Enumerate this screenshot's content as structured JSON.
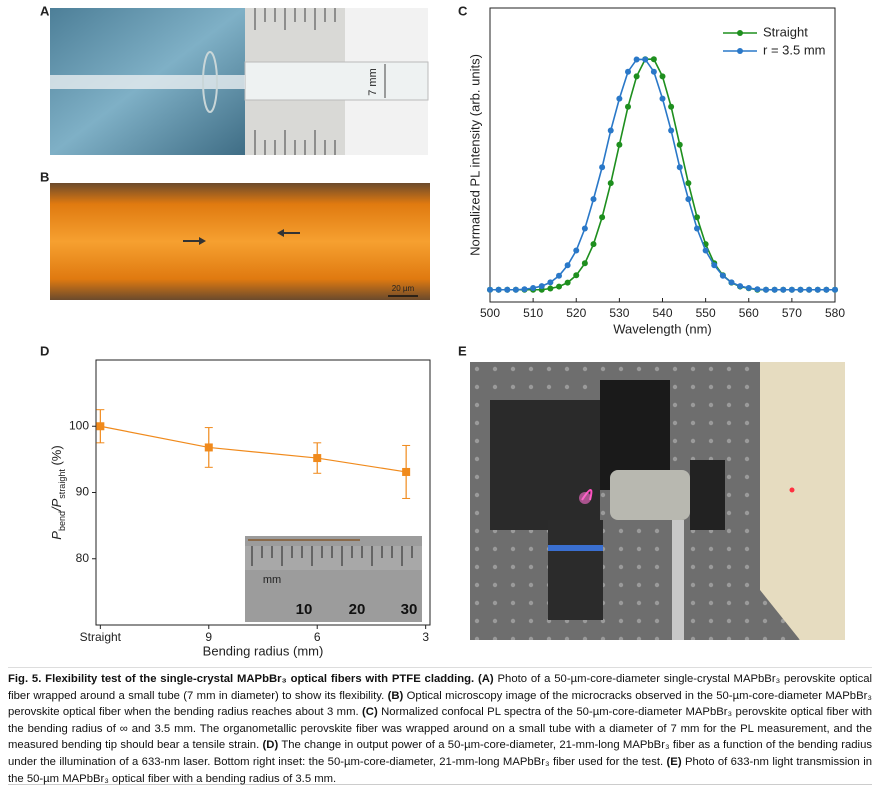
{
  "panel_labels": [
    "A",
    "B",
    "C",
    "D",
    "E"
  ],
  "photo_texts": {
    "a_scale": "7 mm",
    "b_scale": "20 µm",
    "d_inset": [
      "mm",
      "10",
      "20",
      "30"
    ]
  },
  "chart_data": [
    {
      "type": "line",
      "xlabel": "Wavelength (nm)",
      "ylabel": "Normalized PL intensity (arb. units)",
      "x": [
        500,
        502,
        504,
        506,
        508,
        510,
        512,
        514,
        516,
        518,
        520,
        522,
        524,
        526,
        528,
        530,
        532,
        534,
        536,
        538,
        540,
        542,
        544,
        546,
        548,
        550,
        552,
        554,
        556,
        558,
        560,
        562,
        564,
        566,
        568,
        570,
        572,
        574,
        576,
        578,
        580
      ],
      "xlim": [
        500,
        580
      ],
      "xticks": [
        500,
        510,
        520,
        530,
        540,
        550,
        560,
        570,
        580
      ],
      "ylim": [
        0,
        1.2
      ],
      "legend": "upper right",
      "series": [
        {
          "name": "Straight",
          "color": "#1e8f1e",
          "values": [
            0.05,
            0.05,
            0.05,
            0.05,
            0.05,
            0.05,
            0.05,
            0.055,
            0.063,
            0.079,
            0.109,
            0.158,
            0.236,
            0.346,
            0.485,
            0.642,
            0.797,
            0.921,
            0.991,
            0.991,
            0.921,
            0.797,
            0.642,
            0.485,
            0.346,
            0.236,
            0.158,
            0.109,
            0.079,
            0.063,
            0.056,
            0.05,
            0.05,
            0.05,
            0.05,
            0.05,
            0.05,
            0.05,
            0.05,
            0.05,
            0.05
          ]
        },
        {
          "name": "r = 3.5 mm",
          "color": "#2a78c8",
          "values": [
            0.05,
            0.05,
            0.05,
            0.05,
            0.052,
            0.057,
            0.065,
            0.08,
            0.107,
            0.15,
            0.21,
            0.3,
            0.42,
            0.55,
            0.7,
            0.83,
            0.94,
            0.99,
            0.99,
            0.94,
            0.83,
            0.7,
            0.55,
            0.42,
            0.3,
            0.21,
            0.15,
            0.107,
            0.08,
            0.065,
            0.057,
            0.052,
            0.05,
            0.05,
            0.05,
            0.05,
            0.05,
            0.05,
            0.05,
            0.05,
            0.05
          ]
        }
      ]
    },
    {
      "type": "errorbar",
      "xlabel": "Bending radius (mm)",
      "ylabel_parts": [
        "P",
        "bend",
        "/P",
        "straight",
        " (%)"
      ],
      "x": [
        0,
        1,
        2,
        2.82
      ],
      "values": [
        100,
        96.8,
        95.2,
        93.1
      ],
      "errors": [
        2.5,
        3,
        2.3,
        4
      ],
      "color": "#f08a1c",
      "xlim": [
        -0.04,
        3.04
      ],
      "xticks": [
        {
          "value": 0,
          "label": "Straight"
        },
        {
          "value": 1,
          "label": "9"
        },
        {
          "value": 2,
          "label": "6"
        },
        {
          "value": 3,
          "label": "3"
        }
      ],
      "ylim": [
        70,
        110
      ],
      "yticks": [
        80,
        90,
        100
      ]
    }
  ],
  "caption": {
    "title": "Fig. 5. Flexibility test of the single-crystal MAPbBr₃ optical fibers with PTFE cladding.",
    "parts": [
      "(A)",
      " Photo of a 50-µm-core-diameter single-crystal MAPbBr₃ perovskite optical fiber wrapped around a small tube (7 mm in diameter) to show its flexibility. ",
      "(B)",
      " Optical microscopy image of the microcracks observed in the 50-µm-core-diameter MAPbBr₃ perovskite optical fiber when the bending radius reaches about 3 mm. ",
      "(C)",
      " Normalized confocal PL spectra of the 50-µm-core-diameter MAPbBr₃ perovskite optical fiber with the bending radius of ∞ and 3.5 mm. The organometallic perovskite fiber was wrapped around on a small tube with a diameter of 7 mm for the PL measurement, and the measured bending tip should bear a tensile strain. ",
      "(D)",
      " The change in output power of a 50-µm-core-diameter, 21-mm-long MAPbBr₃ fiber as a function of the bending radius under the illumination of a 633-nm laser. Bottom right inset: the 50-µm-core-diameter, 21-mm-long MAPbBr₃ fiber used for the test. ",
      "(E)",
      " Photo of 633-nm light transmission in the 50-µm MAPbBr₃ optical fiber with a bending radius of 3.5 mm."
    ]
  }
}
